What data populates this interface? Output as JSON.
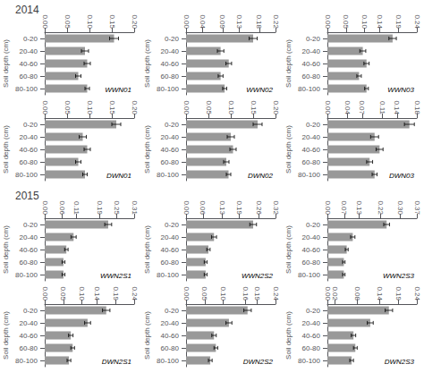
{
  "chart_data": [
    {
      "type": "bar",
      "orientation": "horizontal",
      "title": "2014",
      "ylabel": "Soil depth (cm)",
      "annotations": [
        "WWN01"
      ],
      "color": "#999999",
      "grid": false,
      "categories": [
        "0-20",
        "20-40",
        "40-60",
        "60-80",
        "80-100"
      ],
      "values": [
        0.155,
        0.09,
        0.095,
        0.075,
        0.095
      ],
      "errors": [
        0.01,
        0.008,
        0.007,
        0.006,
        0.005
      ],
      "xlim": [
        0,
        0.2
      ],
      "xticks": [
        {
          "value": 0.0,
          "label": "0.00"
        },
        0.05,
        {
          "value": 0.1,
          "label": "0.10"
        },
        0.15,
        {
          "value": 0.2,
          "label": "0.20"
        }
      ]
    },
    {
      "type": "bar",
      "orientation": "horizontal",
      "ylabel": "Soil depth (cm)",
      "annotations": [
        "WWN02"
      ],
      "color": "#999999",
      "grid": false,
      "categories": [
        "0-20",
        "20-40",
        "40-60",
        "60-80",
        "80-100"
      ],
      "values": [
        0.165,
        0.085,
        0.105,
        0.085,
        0.095
      ],
      "errors": [
        0.01,
        0.008,
        0.007,
        0.006,
        0.005
      ],
      "xlim": [
        0,
        0.22
      ],
      "xticks": [
        {
          "value": 0.0,
          "label": "0.00"
        },
        0.04,
        0.09,
        0.13,
        0.18,
        0.22
      ]
    },
    {
      "type": "bar",
      "orientation": "horizontal",
      "ylabel": "Soil depth (cm)",
      "annotations": [
        "WWN03"
      ],
      "color": "#999999",
      "grid": false,
      "categories": [
        "0-20",
        "20-40",
        "40-60",
        "60-80",
        "80-100"
      ],
      "values": [
        0.175,
        0.095,
        0.105,
        0.085,
        0.105
      ],
      "errors": [
        0.01,
        0.008,
        0.007,
        0.006,
        0.005
      ],
      "xlim": [
        0,
        0.24
      ],
      "xticks": [
        {
          "value": 0.0,
          "label": "0.00"
        },
        0.05,
        {
          "value": 0.1,
          "label": "0.10"
        },
        0.14,
        0.19,
        0.24
      ]
    },
    {
      "type": "bar",
      "orientation": "horizontal",
      "ylabel": "Soil depth (cm)",
      "annotations": [
        "DWN01"
      ],
      "color": "#999999",
      "grid": false,
      "categories": [
        "0-20",
        "20-40",
        "40-60",
        "60-80",
        "80-100"
      ],
      "values": [
        0.16,
        0.085,
        0.095,
        0.075,
        0.09
      ],
      "errors": [
        0.01,
        0.008,
        0.007,
        0.006,
        0.005
      ],
      "xlim": [
        0,
        0.2
      ],
      "xticks": [
        {
          "value": 0.0,
          "label": "0.00"
        },
        0.05,
        {
          "value": 0.1,
          "label": "0.10"
        },
        0.15,
        {
          "value": 0.2,
          "label": "0.20"
        }
      ]
    },
    {
      "type": "bar",
      "orientation": "horizontal",
      "ylabel": "Soil depth (cm)",
      "annotations": [
        "DWN02"
      ],
      "color": "#999999",
      "grid": false,
      "categories": [
        "0-20",
        "20-40",
        "40-60",
        "60-80",
        "80-100"
      ],
      "values": [
        0.16,
        0.1,
        0.105,
        0.09,
        0.095
      ],
      "errors": [
        0.01,
        0.008,
        0.007,
        0.006,
        0.005
      ],
      "xlim": [
        0,
        0.2
      ],
      "xticks": [
        {
          "value": 0.0,
          "label": "0.00"
        },
        0.05,
        {
          "value": 0.1,
          "label": "0.10"
        },
        0.15,
        {
          "value": 0.2,
          "label": "0.20"
        }
      ]
    },
    {
      "type": "bar",
      "orientation": "horizontal",
      "ylabel": "Soil depth (cm)",
      "annotations": [
        "DWN03"
      ],
      "color": "#999999",
      "grid": false,
      "categories": [
        "0-20",
        "20-40",
        "40-60",
        "60-80",
        "80-100"
      ],
      "values": [
        0.165,
        0.095,
        0.105,
        0.085,
        0.095
      ],
      "errors": [
        0.01,
        0.008,
        0.007,
        0.006,
        0.005
      ],
      "xlim": [
        0,
        0.18
      ],
      "xticks": [
        {
          "value": 0.0,
          "label": "0.00"
        },
        0.04,
        0.07,
        0.11,
        0.14,
        0.18
      ]
    },
    {
      "type": "bar",
      "orientation": "horizontal",
      "title": "2015",
      "ylabel": "Soil depth (cm)",
      "annotations": [
        "WWN2S1"
      ],
      "color": "#999999",
      "grid": false,
      "categories": [
        "0-20",
        "20-40",
        "40-60",
        "60-80",
        "80-100"
      ],
      "values": [
        0.22,
        0.1,
        0.075,
        0.065,
        0.065
      ],
      "errors": [
        0.012,
        0.009,
        0.006,
        0.005,
        0.005
      ],
      "xlim": [
        0,
        0.31
      ],
      "xticks": [
        {
          "value": 0.0,
          "label": "0.00"
        },
        0.06,
        0.11,
        0.19,
        0.25,
        0.31
      ]
    },
    {
      "type": "bar",
      "orientation": "horizontal",
      "ylabel": "Soil depth (cm)",
      "annotations": [
        "WWN2S2"
      ],
      "color": "#999999",
      "grid": false,
      "categories": [
        "0-20",
        "20-40",
        "40-60",
        "60-80",
        "80-100"
      ],
      "values": [
        0.24,
        0.1,
        0.08,
        0.07,
        0.07
      ],
      "errors": [
        0.012,
        0.009,
        0.006,
        0.005,
        0.005
      ],
      "xlim": [
        0,
        0.32
      ],
      "xticks": [
        {
          "value": 0.0,
          "label": "0.00"
        },
        0.06,
        0.13,
        0.19,
        0.26,
        0.32
      ]
    },
    {
      "type": "bar",
      "orientation": "horizontal",
      "ylabel": "Soil depth (cm)",
      "annotations": [
        "WWN2S3"
      ],
      "color": "#999999",
      "grid": false,
      "categories": [
        "0-20",
        "20-40",
        "40-60",
        "60-80",
        "80-100"
      ],
      "values": [
        0.245,
        0.105,
        0.08,
        0.068,
        0.068
      ],
      "errors": [
        0.012,
        0.009,
        0.006,
        0.005,
        0.005
      ],
      "xlim": [
        0,
        0.37
      ],
      "xticks": [
        {
          "value": 0.0,
          "label": "0.00"
        },
        0.07,
        0.13,
        0.22,
        {
          "value": 0.3,
          "label": "0.30"
        },
        0.37
      ]
    },
    {
      "type": "bar",
      "orientation": "horizontal",
      "ylabel": "Soil depth (cm)",
      "annotations": [
        "DWN2S1"
      ],
      "color": "#999999",
      "grid": false,
      "categories": [
        "0-20",
        "20-40",
        "40-60",
        "60-80",
        "80-100"
      ],
      "values": [
        0.165,
        0.115,
        0.07,
        0.075,
        0.065
      ],
      "errors": [
        0.01,
        0.008,
        0.006,
        0.005,
        0.005
      ],
      "xlim": [
        0,
        0.24
      ],
      "xticks": [
        {
          "value": 0.0,
          "label": "0.00"
        },
        0.05,
        {
          "value": 0.1,
          "label": "0.10"
        },
        0.14,
        0.19,
        0.24
      ]
    },
    {
      "type": "bar",
      "orientation": "horizontal",
      "ylabel": "Soil depth (cm)",
      "annotations": [
        "DWN2S2"
      ],
      "color": "#999999",
      "grid": false,
      "categories": [
        "0-20",
        "20-40",
        "40-60",
        "60-80",
        "80-100"
      ],
      "values": [
        0.165,
        0.115,
        0.075,
        0.08,
        0.065
      ],
      "errors": [
        0.01,
        0.008,
        0.006,
        0.005,
        0.005
      ],
      "xlim": [
        0,
        0.24
      ],
      "xticks": [
        {
          "value": 0.0,
          "label": "0.00"
        },
        0.05,
        {
          "value": 0.1,
          "label": "0.10"
        },
        0.16,
        0.19,
        0.24
      ]
    },
    {
      "type": "bar",
      "orientation": "horizontal",
      "ylabel": "Soil depth (cm)",
      "annotations": [
        "DWN2S3"
      ],
      "color": "#999999",
      "grid": false,
      "categories": [
        "0-20",
        "20-40",
        "40-60",
        "60-80",
        "80-100"
      ],
      "values": [
        0.165,
        0.115,
        0.07,
        0.075,
        0.065
      ],
      "errors": [
        0.01,
        0.008,
        0.006,
        0.005,
        0.005
      ],
      "xlim": [
        0,
        0.24
      ],
      "xticks": [
        {
          "value": 0.0,
          "label": "0.00"
        },
        0.02,
        0.08,
        0.14,
        0.19,
        0.24
      ]
    }
  ]
}
